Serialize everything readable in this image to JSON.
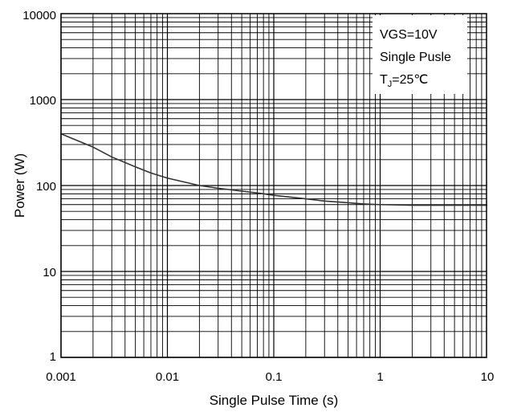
{
  "chart_data": {
    "type": "line",
    "xscale": "log",
    "yscale": "log",
    "xlim": [
      0.001,
      10
    ],
    "ylim": [
      1,
      10000
    ],
    "grid": true,
    "xlabel": "Single Pulse Time (s)",
    "ylabel": "Power (W)",
    "x_ticks": [
      0.001,
      0.01,
      0.1,
      1,
      10
    ],
    "x_tick_labels": [
      "0.001",
      "0.01",
      "0.1",
      "1",
      "10"
    ],
    "y_ticks": [
      1,
      10,
      100,
      1000,
      10000
    ],
    "y_tick_labels": [
      "1",
      "10",
      "100",
      "1000",
      "10000"
    ],
    "annotation": {
      "placement": "top-right",
      "lines": [
        {
          "text": "VGS=10V"
        },
        {
          "text": "Single Pusle"
        },
        {
          "prefix": "T",
          "subscript": "J",
          "suffix": "=25℃"
        }
      ]
    },
    "series": [
      {
        "color": "#333333",
        "x": [
          0.001,
          0.002,
          0.003,
          0.005,
          0.007,
          0.01,
          0.02,
          0.03,
          0.05,
          0.07,
          0.1,
          0.2,
          0.3,
          0.5,
          0.7,
          1,
          2,
          3,
          5,
          10
        ],
        "y": [
          400,
          280,
          215,
          165,
          140,
          122,
          100,
          93,
          86,
          82,
          77,
          70,
          66,
          63,
          61,
          60,
          59,
          59,
          59,
          59
        ]
      }
    ]
  }
}
